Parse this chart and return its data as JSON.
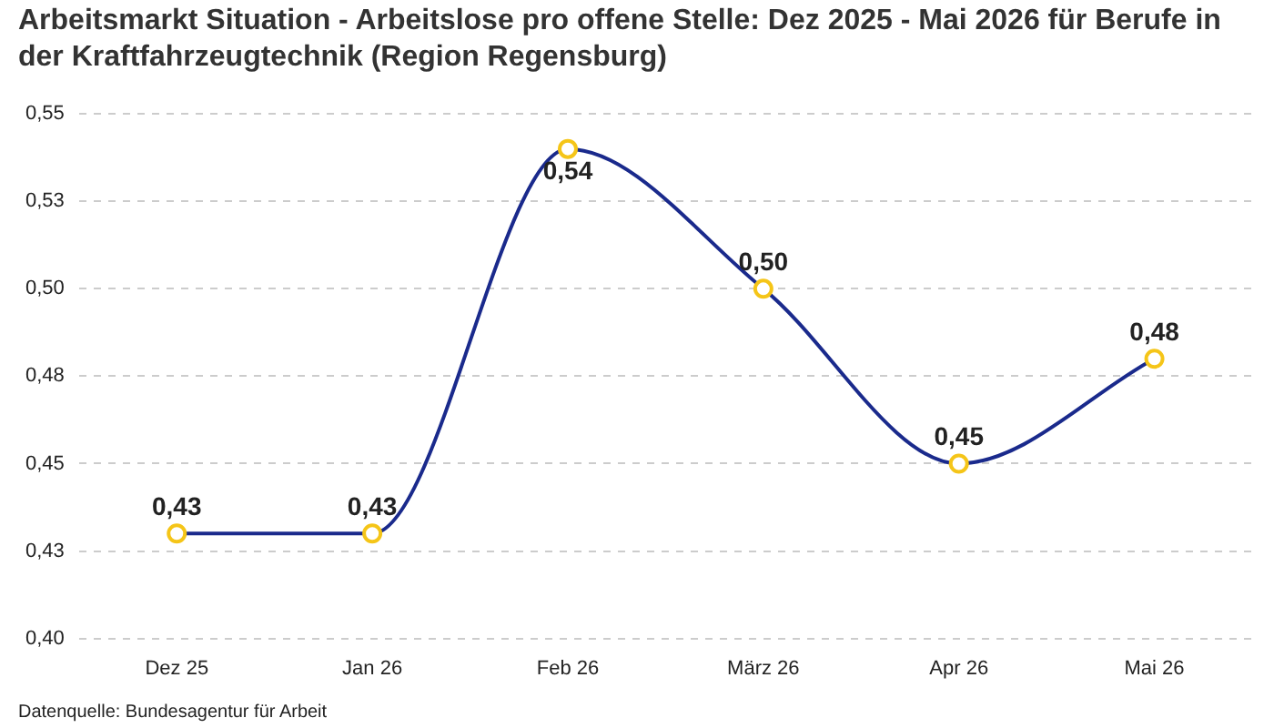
{
  "chart_data": {
    "type": "line",
    "title": "Arbeitsmarkt Situation - Arbeitslose pro offene Stelle: Dez 2025 - Mai 2026 für Berufe in der Kraftfahrzeugtechnik (Region Regensburg)",
    "categories": [
      "Dez 25",
      "Jan 26",
      "Feb 26",
      "März 26",
      "Apr 26",
      "Mai 26"
    ],
    "series": [
      {
        "color": "#1a2a8c",
        "values": [
          0.43,
          0.43,
          0.54,
          0.5,
          0.45,
          0.48
        ],
        "value_labels": [
          "0,43",
          "0,43",
          "0,54",
          "0,50",
          "0,45",
          "0,48"
        ]
      }
    ],
    "ylim": [
      0.4,
      0.55
    ],
    "yticks": [
      {
        "value": 0.4,
        "label": "0,40"
      },
      {
        "value": 0.425,
        "label": "0,43"
      },
      {
        "value": 0.45,
        "label": "0,45"
      },
      {
        "value": 0.475,
        "label": "0,48"
      },
      {
        "value": 0.5,
        "label": "0,50"
      },
      {
        "value": 0.525,
        "label": "0,53"
      },
      {
        "value": 0.55,
        "label": "0,55"
      }
    ],
    "grid": "y",
    "legend": false,
    "marker": "circle",
    "line_style": "solid",
    "annotations": [
      "Datenquelle: Bundesagentur für Arbeit"
    ]
  }
}
